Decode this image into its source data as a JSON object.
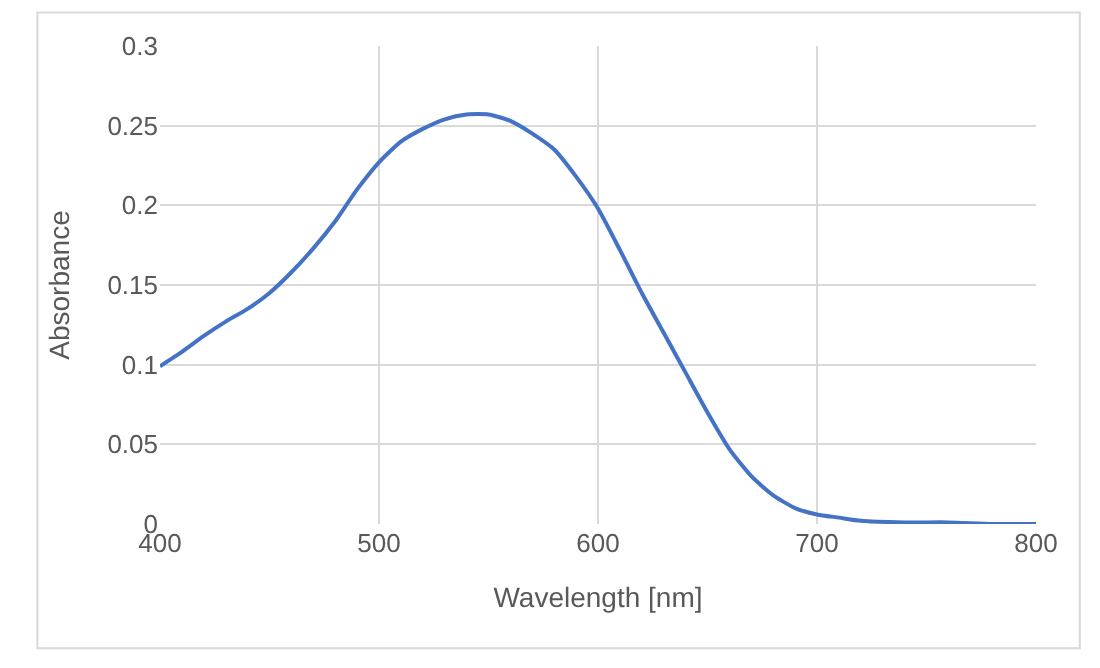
{
  "chart_data": {
    "type": "line",
    "xlabel": "Wavelength [nm]",
    "ylabel": "Absorbance",
    "x": [
      400,
      410,
      420,
      430,
      440,
      450,
      460,
      470,
      480,
      490,
      500,
      510,
      520,
      530,
      540,
      550,
      560,
      570,
      580,
      590,
      600,
      610,
      620,
      630,
      640,
      650,
      660,
      670,
      680,
      690,
      700,
      710,
      720,
      740,
      760,
      780,
      800
    ],
    "series": [
      {
        "color": "#4472c4",
        "values": [
          0.099,
          0.108,
          0.118,
          0.127,
          0.135,
          0.145,
          0.158,
          0.173,
          0.19,
          0.21,
          0.227,
          0.24,
          0.248,
          0.254,
          0.257,
          0.257,
          0.253,
          0.245,
          0.235,
          0.218,
          0.198,
          0.172,
          0.145,
          0.12,
          0.095,
          0.07,
          0.047,
          0.03,
          0.018,
          0.01,
          0.006,
          0.004,
          0.002,
          0.001,
          0.001,
          0.0,
          0.0
        ]
      }
    ],
    "xlim": [
      400,
      800
    ],
    "xticks": [
      400,
      500,
      600,
      700,
      800
    ],
    "ylim": [
      0,
      0.3
    ],
    "yticks": [
      {
        "value": 0,
        "label": "0"
      },
      0.05,
      0.1,
      0.15,
      0.2,
      0.25,
      0.3
    ],
    "grid": true,
    "legend": false,
    "marker": "none",
    "line_style": "solid"
  }
}
